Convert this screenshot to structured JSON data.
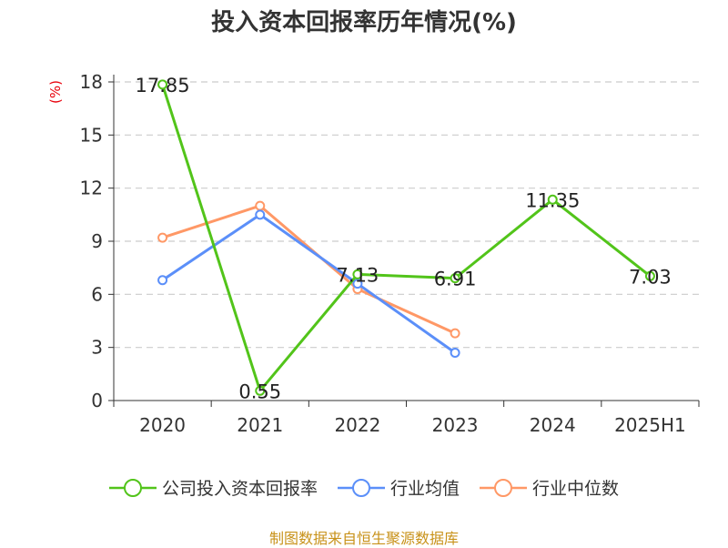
{
  "title": "投入资本回报率历年情况(%)",
  "source": "制图数据来自恒生聚源数据库",
  "colors": {
    "company": "#52c41a",
    "industry_avg": "#5b8ff9",
    "industry_median": "#ff9866",
    "ylabel": "#e8000b",
    "source": "#c8921a"
  },
  "legend": [
    {
      "label": "公司投入资本回报率",
      "color_key": "company"
    },
    {
      "label": "行业均值",
      "color_key": "industry_avg"
    },
    {
      "label": "行业中位数",
      "color_key": "industry_median"
    }
  ],
  "chart_data": {
    "type": "line",
    "title": "投入资本回报率历年情况(%)",
    "xlabel": "",
    "ylabel": "(%)",
    "categories": [
      "2020",
      "2021",
      "2022",
      "2023",
      "2024",
      "2025H1"
    ],
    "ylim": [
      0,
      18
    ],
    "yticks": [
      0,
      3,
      6,
      9,
      12,
      15,
      18
    ],
    "grid": true,
    "legend_position": "bottom",
    "series": [
      {
        "name": "公司投入资本回报率",
        "color_key": "company",
        "values": [
          17.85,
          0.55,
          7.13,
          6.91,
          11.35,
          7.03
        ],
        "labels": [
          "17.85",
          "0.55",
          "7.13",
          "6.91",
          "11.35",
          "7.03"
        ]
      },
      {
        "name": "行业均值",
        "color_key": "industry_avg",
        "values": [
          6.8,
          10.5,
          6.6,
          2.7,
          null,
          null
        ]
      },
      {
        "name": "行业中位数",
        "color_key": "industry_median",
        "values": [
          9.2,
          11.0,
          6.3,
          3.8,
          null,
          null
        ]
      }
    ]
  }
}
